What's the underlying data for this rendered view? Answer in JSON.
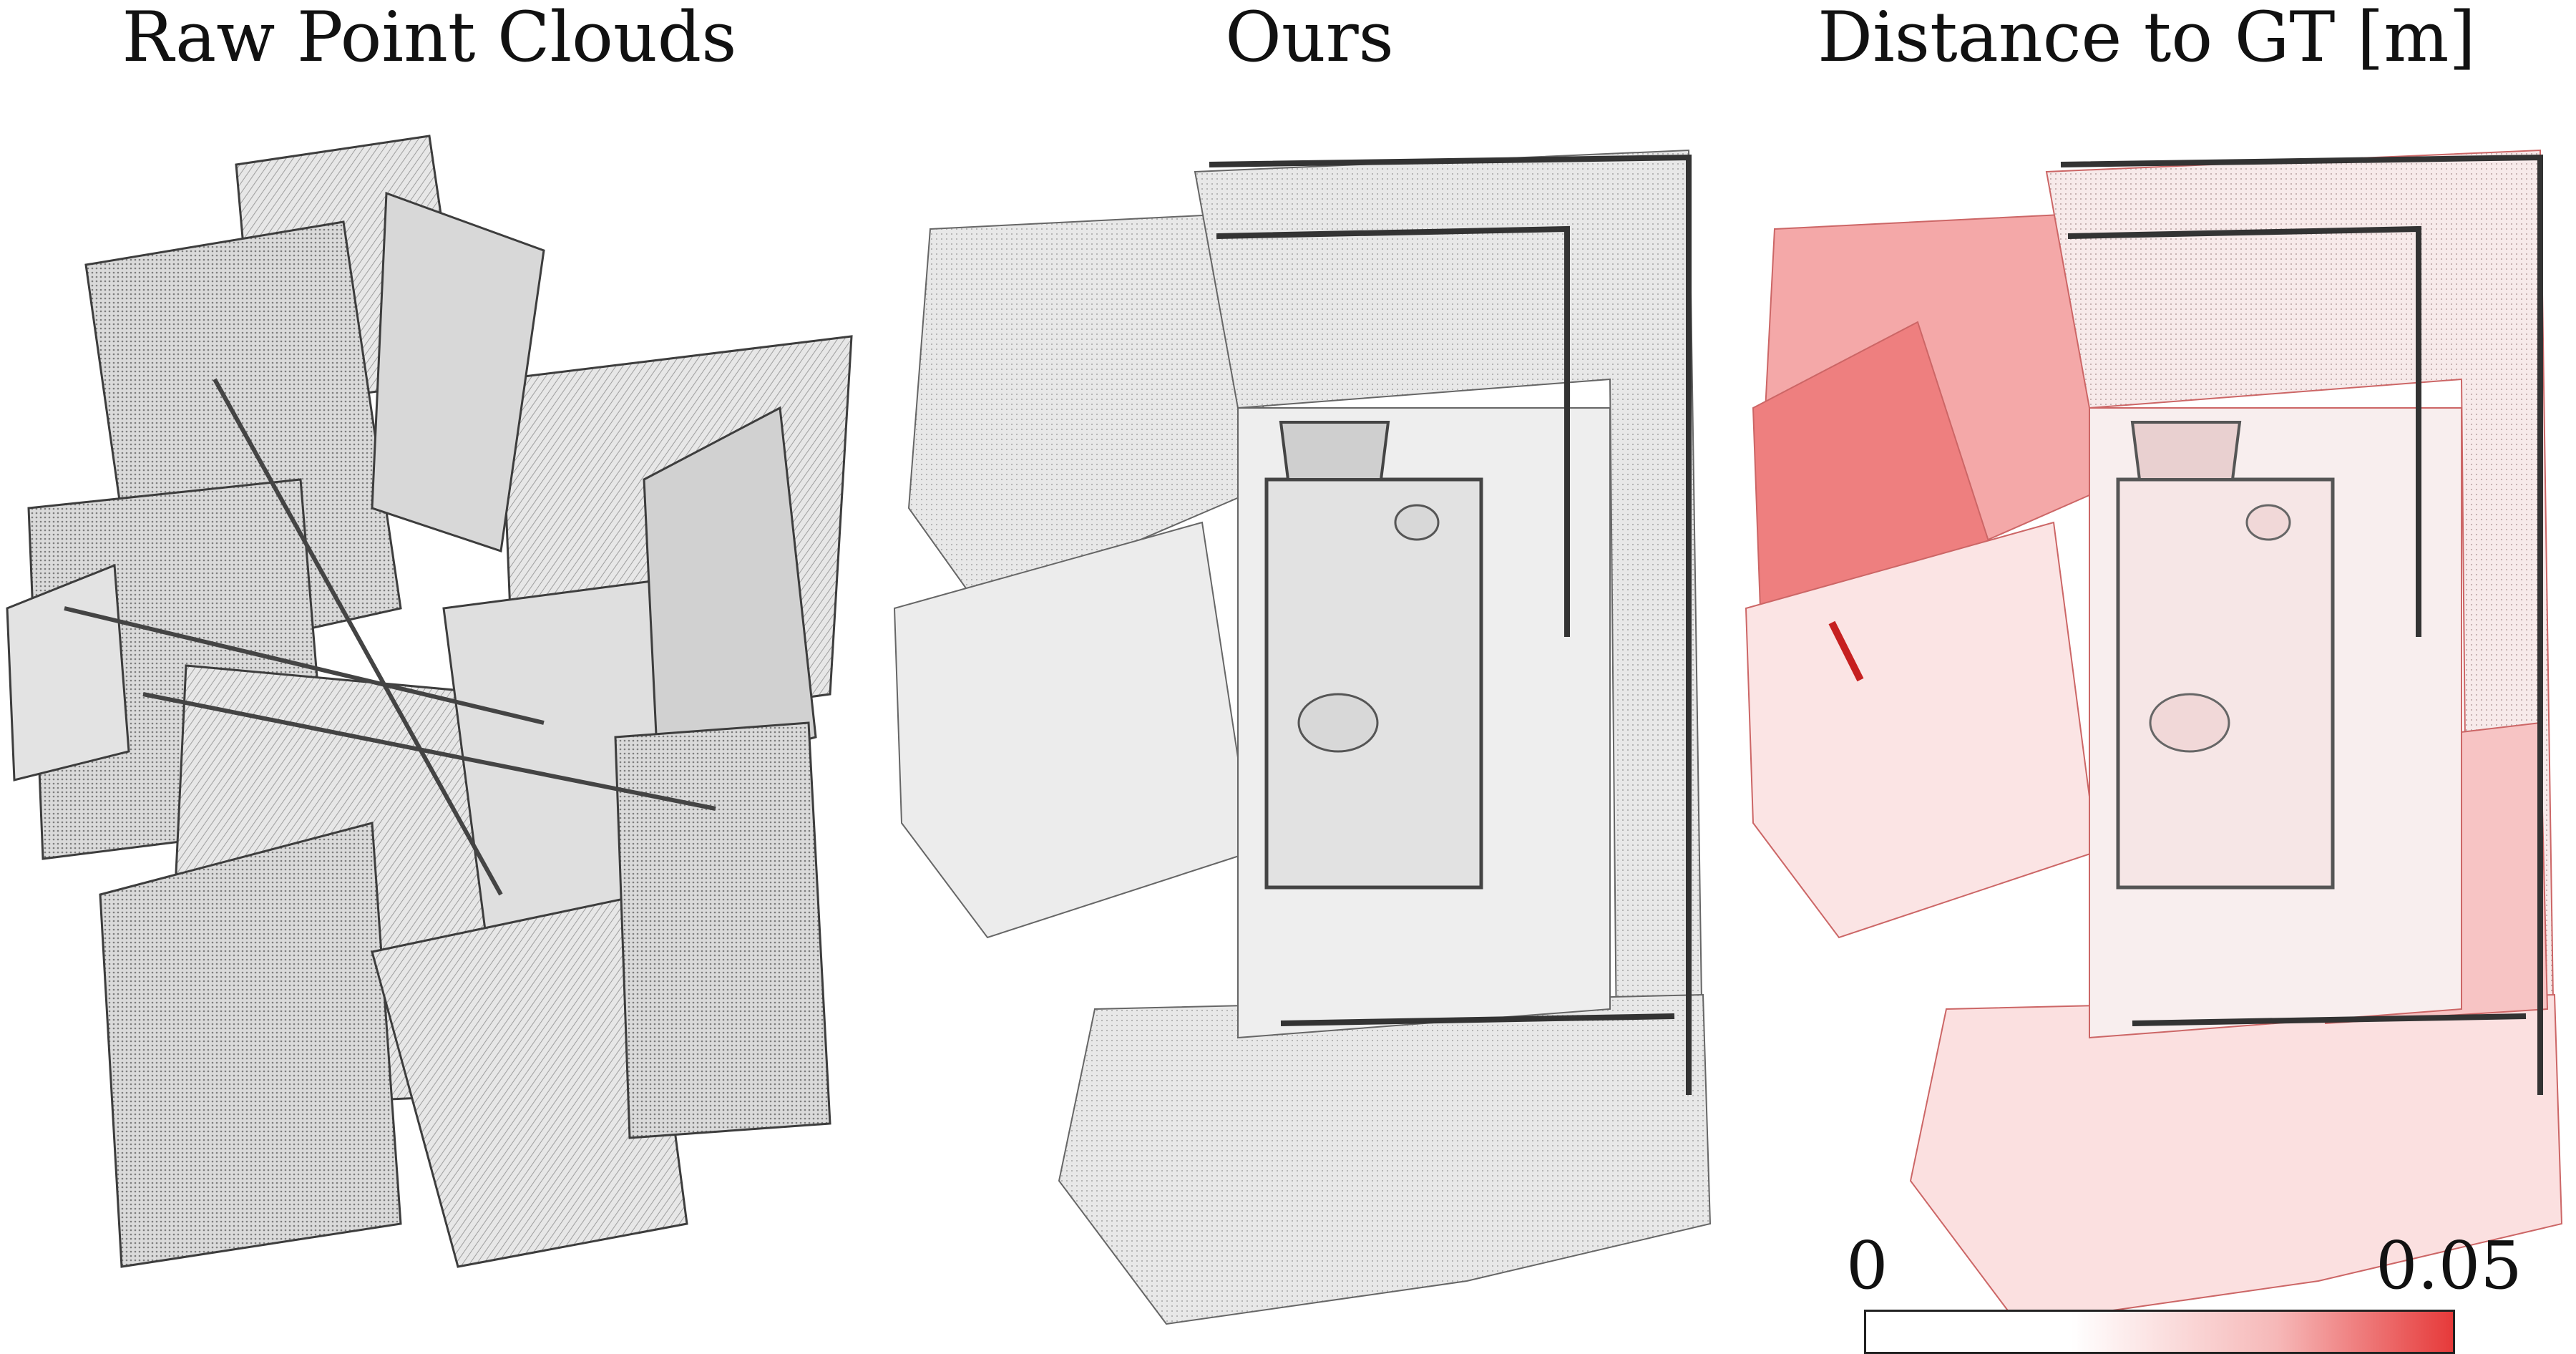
{
  "panels": [
    {
      "title": "Raw Point Clouds"
    },
    {
      "title": "Ours"
    },
    {
      "title": "Distance to GT [m]"
    }
  ],
  "colorbar": {
    "min_label": "0",
    "max_label": "0.05",
    "colors": [
      "#ffffff",
      "#f6b8b8",
      "#e63a3a"
    ]
  }
}
